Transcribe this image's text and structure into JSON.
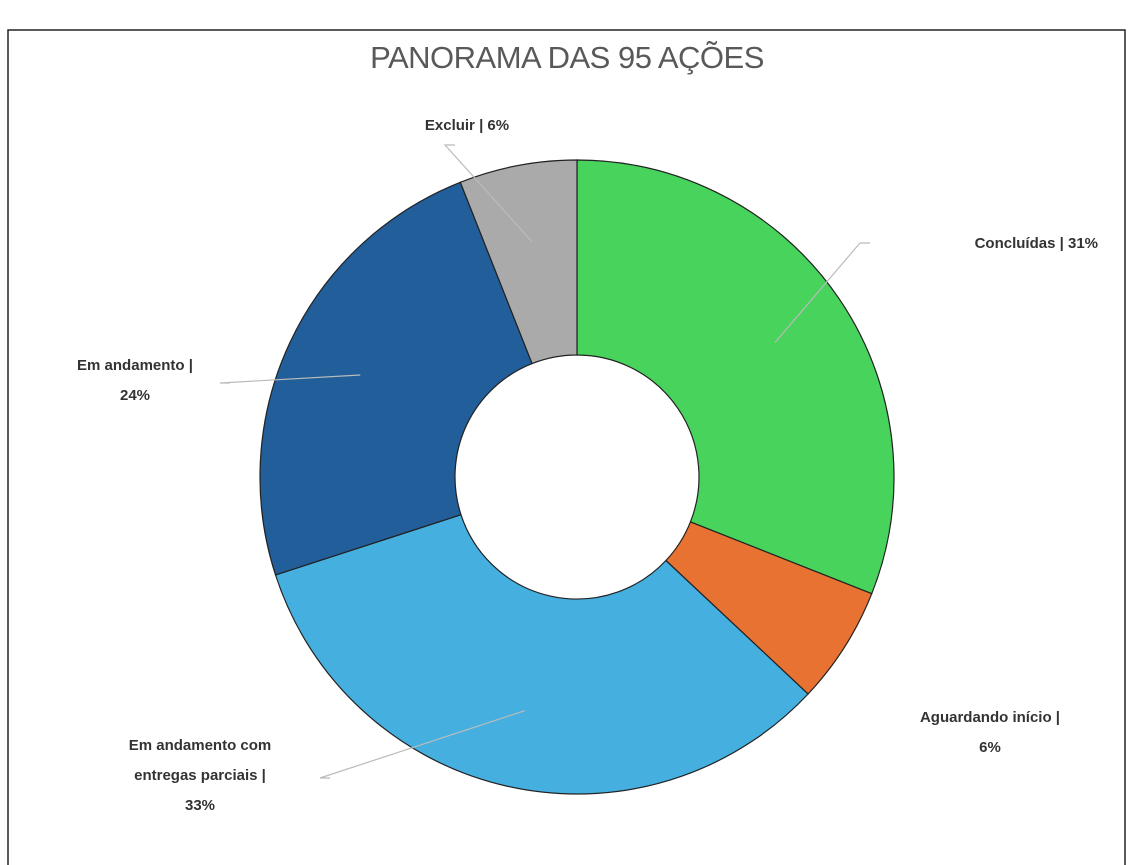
{
  "chart_data": {
    "type": "donut",
    "title": "PANORAMA DAS 95 AÇÕES",
    "values": [
      31,
      6,
      33,
      24,
      6
    ],
    "value_labels": [
      [
        "Concluídas  |  31%"
      ],
      [
        "Aguardando início  |",
        "6%"
      ],
      [
        "Em andamento com",
        "entregas parciais  |",
        "33%"
      ],
      [
        "Em andamento  |",
        "24%"
      ],
      [
        "Excluir |  6%"
      ]
    ],
    "colors": [
      "#47d35c",
      "#e87232",
      "#45b0e0",
      "#215e9a",
      "#aaaaaa"
    ]
  }
}
